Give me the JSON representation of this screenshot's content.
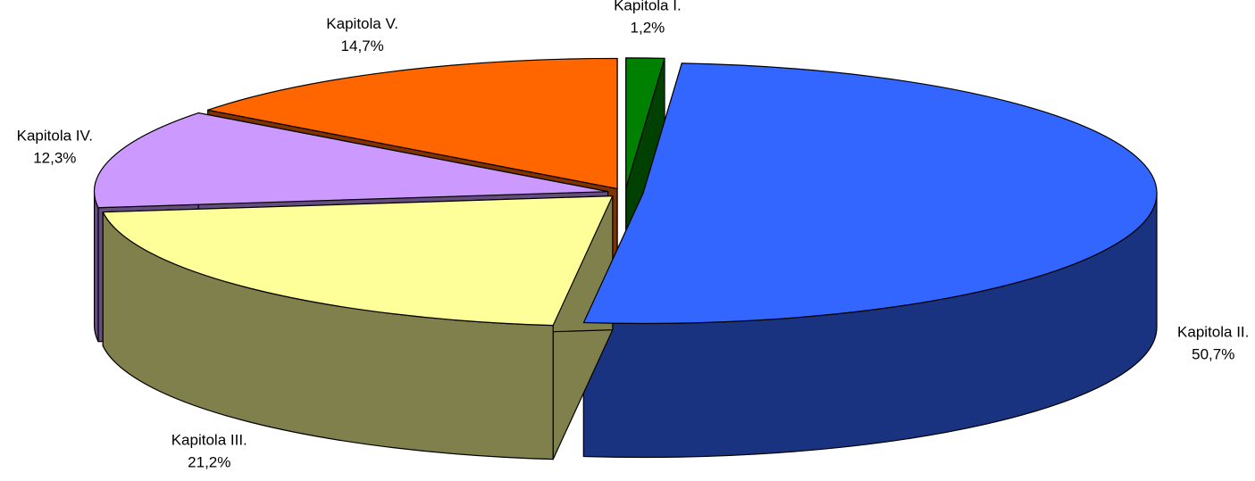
{
  "chart_data": {
    "type": "pie3d",
    "categories": [
      "Kapitola I.",
      "Kapitola II.",
      "Kapitola III.",
      "Kapitola IV.",
      "Kapitola V."
    ],
    "values": [
      1.2,
      50.7,
      21.2,
      12.3,
      14.7
    ],
    "value_labels": [
      "1,2%",
      "50,7%",
      "21,2%",
      "12,3%",
      "14,7%"
    ],
    "colors": [
      "#008000",
      "#3366ff",
      "#ffff99",
      "#cc99ff",
      "#ff6600"
    ]
  }
}
